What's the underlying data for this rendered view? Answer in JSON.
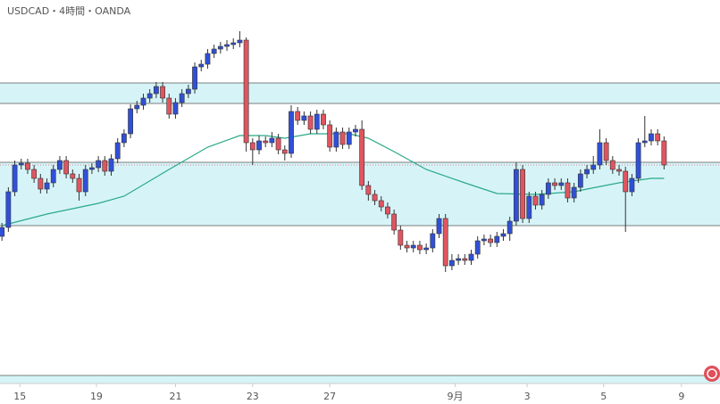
{
  "chart_data": {
    "type": "candlestick",
    "title": "USDCAD・4時間・OANDA",
    "up_color": "#3050d8",
    "down_color": "#e05560",
    "ma_color": "#2aa889",
    "zone_color": "#d6f4f8",
    "ylim": [
      0,
      430
    ],
    "xlim": [
      -0.3,
      111.7
    ],
    "xticks": [
      {
        "value": 2.8,
        "label": "15"
      },
      {
        "value": 14.7,
        "label": "19"
      },
      {
        "value": 27,
        "label": "21"
      },
      {
        "value": 39,
        "label": "23"
      },
      {
        "value": 51,
        "label": "27"
      },
      {
        "value": 70.5,
        "label": "9月"
      },
      {
        "value": 81.7,
        "label": "3"
      },
      {
        "value": 93.6,
        "label": "5"
      },
      {
        "value": 105.7,
        "label": "9"
      }
    ],
    "zones": [
      [
        314,
        337
      ],
      [
        177,
        248
      ],
      [
        0,
        9
      ]
    ],
    "open": [
      165,
      175,
      215,
      245,
      247,
      240,
      230,
      218,
      225,
      240,
      250,
      235,
      230,
      215,
      240,
      242,
      250,
      238,
      252,
      270,
      280,
      308,
      312,
      320,
      325,
      333,
      320,
      302,
      315,
      325,
      330,
      355,
      358,
      370,
      375,
      378,
      380,
      382,
      385,
      270,
      262,
      272,
      270,
      275,
      262,
      258,
      305,
      295,
      300,
      285,
      302,
      290,
      265,
      282,
      268,
      282,
      285,
      222,
      212,
      205,
      198,
      190,
      172,
      155,
      152,
      155,
      150,
      152,
      168,
      185,
      132,
      138,
      140,
      138,
      145,
      160,
      162,
      158,
      165,
      168,
      182,
      240,
      185,
      210,
      200,
      212,
      225,
      222,
      225,
      208,
      220,
      235,
      240,
      245,
      270,
      250,
      240,
      238,
      215,
      230,
      270,
      272,
      280,
      272
    ],
    "high": [
      180,
      220,
      250,
      252,
      252,
      245,
      235,
      230,
      245,
      255,
      255,
      240,
      235,
      245,
      247,
      255,
      255,
      257,
      275,
      285,
      313,
      317,
      325,
      330,
      338,
      338,
      325,
      320,
      330,
      335,
      360,
      363,
      375,
      380,
      383,
      385,
      387,
      395,
      388,
      275,
      278,
      277,
      282,
      280,
      267,
      312,
      310,
      305,
      305,
      307,
      307,
      295,
      287,
      287,
      287,
      290,
      295,
      227,
      217,
      210,
      203,
      195,
      177,
      160,
      160,
      160,
      157,
      173,
      190,
      190,
      145,
      145,
      145,
      150,
      165,
      167,
      167,
      170,
      173,
      187,
      248,
      245,
      215,
      215,
      217,
      230,
      230,
      230,
      230,
      225,
      240,
      245,
      255,
      285,
      275,
      255,
      245,
      243,
      235,
      275,
      300,
      285,
      285,
      277
    ],
    "low": [
      160,
      170,
      210,
      240,
      235,
      225,
      213,
      213,
      220,
      235,
      230,
      225,
      205,
      210,
      235,
      237,
      233,
      233,
      247,
      265,
      275,
      303,
      307,
      315,
      320,
      315,
      297,
      297,
      310,
      320,
      325,
      350,
      353,
      365,
      370,
      373,
      375,
      377,
      260,
      245,
      257,
      265,
      265,
      257,
      250,
      253,
      290,
      290,
      280,
      280,
      285,
      260,
      260,
      263,
      263,
      277,
      217,
      205,
      200,
      193,
      185,
      167,
      150,
      147,
      147,
      145,
      145,
      147,
      163,
      125,
      127,
      133,
      133,
      133,
      140,
      155,
      153,
      153,
      160,
      160,
      177,
      180,
      180,
      195,
      195,
      207,
      217,
      217,
      203,
      203,
      215,
      230,
      235,
      240,
      245,
      235,
      233,
      170,
      210,
      225,
      265,
      267,
      267,
      240
    ],
    "close": [
      175,
      215,
      245,
      247,
      240,
      230,
      218,
      225,
      240,
      250,
      235,
      230,
      215,
      240,
      242,
      250,
      238,
      252,
      270,
      280,
      308,
      312,
      320,
      325,
      333,
      320,
      302,
      315,
      325,
      330,
      355,
      358,
      370,
      375,
      378,
      380,
      382,
      385,
      270,
      262,
      272,
      270,
      275,
      262,
      258,
      305,
      295,
      300,
      285,
      302,
      290,
      265,
      282,
      268,
      282,
      285,
      222,
      212,
      205,
      198,
      190,
      172,
      155,
      152,
      155,
      150,
      152,
      168,
      185,
      132,
      138,
      140,
      138,
      145,
      160,
      162,
      158,
      165,
      168,
      182,
      240,
      185,
      210,
      200,
      212,
      225,
      222,
      225,
      208,
      220,
      235,
      240,
      245,
      270,
      250,
      240,
      238,
      215,
      230,
      270,
      272,
      280,
      272,
      245
    ],
    "ma": {
      "x": [
        0,
        7,
        15,
        19,
        26,
        32,
        37,
        41,
        44,
        48,
        54,
        57,
        61,
        66,
        72,
        77,
        83,
        89,
        91,
        96,
        101,
        103
      ],
      "values": [
        177,
        190,
        202,
        210,
        240,
        265,
        278,
        278,
        275,
        280,
        280,
        275,
        260,
        240,
        225,
        213,
        212,
        215,
        218,
        225,
        230,
        230
      ]
    }
  }
}
